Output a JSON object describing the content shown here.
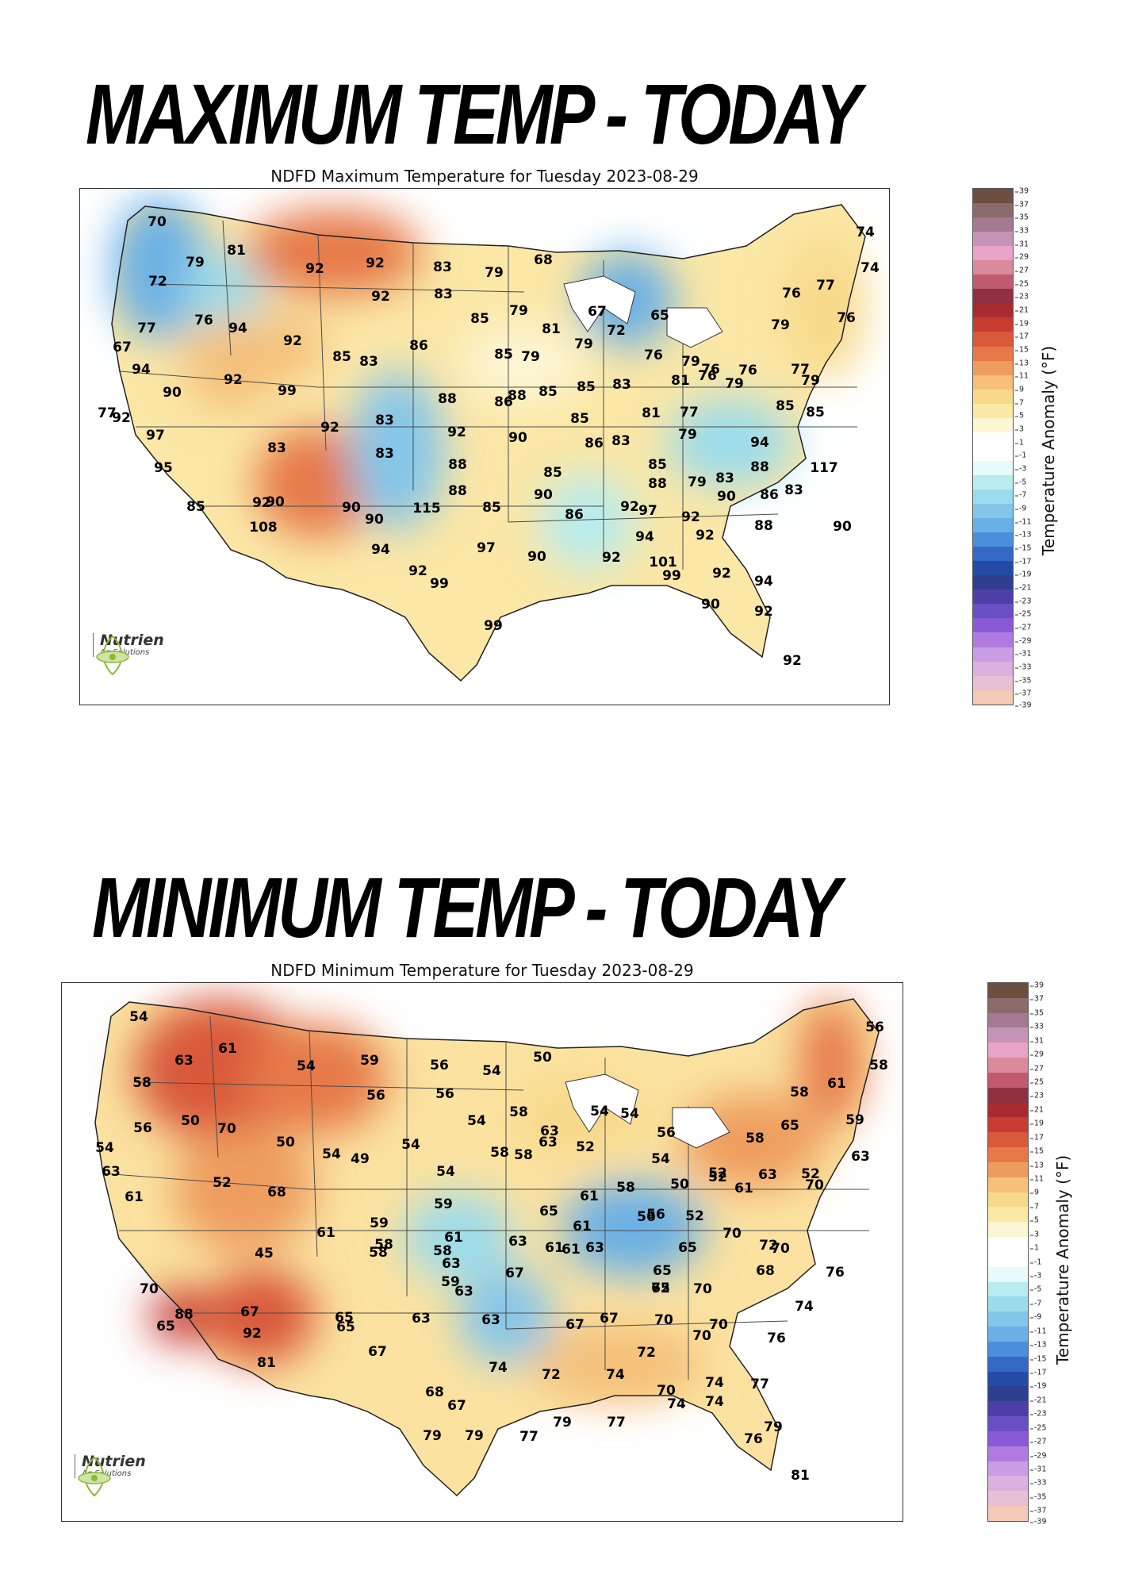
{
  "colors": {
    "warm": [
      "#fdf6d5",
      "#fbe9a6",
      "#f8d98a",
      "#f4c07a",
      "#ee9d5f",
      "#e6794a",
      "#d9593b",
      "#c83b31",
      "#a72b31",
      "#8f2f3f",
      "#c05a6e",
      "#d98a9b",
      "#e9a3c9",
      "#c794b9",
      "#a47a92",
      "#8a6a6a",
      "#6b4f3f"
    ],
    "cool": [
      "#e8fbfb",
      "#b8ecef",
      "#9bdcec",
      "#84c6ea",
      "#6ab0e6",
      "#4b8fdb",
      "#3469c4",
      "#244ba6",
      "#2f3f8f",
      "#4d3ea8",
      "#6a4ec4",
      "#8a5ad6",
      "#b07ae0",
      "#c99ee5",
      "#dcb0df",
      "#e8c0d6",
      "#f4c9b6"
    ],
    "logo_green": "#8db83b"
  },
  "maps": [
    {
      "headline": "MAXIMUM TEMP - TODAY",
      "title": "NDFD Maximum Temperature for Tuesday 2023-08-29",
      "logo": {
        "name": "Nutrien",
        "sub": "Ag Solutions"
      },
      "colorbar": {
        "label": "Temperature Anomaly (°F)",
        "ticks": [
          "39",
          "37",
          "35",
          "33",
          "31",
          "29",
          "27",
          "25",
          "23",
          "21",
          "19",
          "17",
          "15",
          "13",
          "11",
          "9",
          "7",
          "5",
          "3",
          "1",
          "-1",
          "-3",
          "-5",
          "-7",
          "-9",
          "-11",
          "-13",
          "-15",
          "-17",
          "-19",
          "-21",
          "-23",
          "-25",
          "-27",
          "-29",
          "-31",
          "-33",
          "-35",
          "-37",
          "-39"
        ]
      },
      "labels": [
        "70",
        "81",
        "79",
        "72",
        "92",
        "92",
        "83",
        "79",
        "68",
        "92",
        "83",
        "76",
        "77",
        "94",
        "92",
        "85",
        "79",
        "67",
        "65",
        "77",
        "74",
        "74",
        "76",
        "79",
        "76",
        "67",
        "85",
        "83",
        "86",
        "85",
        "79",
        "81",
        "72",
        "79",
        "76",
        "79",
        "76",
        "76",
        "94",
        "90",
        "92",
        "99",
        "88",
        "86",
        "88",
        "85",
        "85",
        "83",
        "81",
        "76",
        "79",
        "77",
        "79",
        "77",
        "92",
        "97",
        "92",
        "83",
        "92",
        "90",
        "85",
        "86",
        "83",
        "81",
        "77",
        "85",
        "85",
        "83",
        "83",
        "79",
        "94",
        "88",
        "85",
        "85",
        "79",
        "83",
        "88",
        "117",
        "95",
        "92",
        "88",
        "90",
        "88",
        "90",
        "86",
        "83",
        "85",
        "90",
        "90",
        "115",
        "85",
        "86",
        "88",
        "90",
        "108",
        "90",
        "92",
        "97",
        "94",
        "92",
        "94",
        "92",
        "97",
        "92",
        "90",
        "92",
        "101",
        "99",
        "99",
        "92",
        "90",
        "94",
        "92",
        "99",
        "92"
      ]
    },
    {
      "headline": "MINIMUM TEMP - TODAY",
      "title": "NDFD Minimum Temperature for Tuesday 2023-08-29",
      "logo": {
        "name": "Nutrien",
        "sub": "Ag Solutions"
      },
      "colorbar": {
        "label": "Temperature Anomaly (°F)",
        "ticks": [
          "39",
          "37",
          "35",
          "33",
          "31",
          "29",
          "27",
          "25",
          "23",
          "21",
          "19",
          "17",
          "15",
          "13",
          "11",
          "9",
          "7",
          "5",
          "3",
          "1",
          "-1",
          "-3",
          "-5",
          "-7",
          "-9",
          "-11",
          "-13",
          "-15",
          "-17",
          "-19",
          "-21",
          "-23",
          "-25",
          "-27",
          "-29",
          "-31",
          "-33",
          "-35",
          "-37",
          "-39"
        ]
      },
      "labels": [
        "54",
        "63",
        "61",
        "59",
        "54",
        "56",
        "54",
        "50",
        "56",
        "58",
        "56",
        "56",
        "58",
        "61",
        "58",
        "50",
        "70",
        "54",
        "54",
        "58",
        "54",
        "56",
        "63",
        "52",
        "59",
        "65",
        "56",
        "54",
        "63",
        "50",
        "54",
        "49",
        "54",
        "58",
        "58",
        "52",
        "61",
        "54",
        "58",
        "63",
        "63",
        "52",
        "68",
        "54",
        "52",
        "61",
        "63",
        "58",
        "50",
        "52",
        "61",
        "65",
        "70",
        "59",
        "56",
        "56",
        "52",
        "58",
        "59",
        "58",
        "61",
        "61",
        "61",
        "63",
        "63",
        "61",
        "65",
        "70",
        "72",
        "45",
        "58",
        "63",
        "61",
        "67",
        "70",
        "65",
        "68",
        "65",
        "72",
        "70",
        "59",
        "63",
        "70",
        "76",
        "88",
        "65",
        "67",
        "65",
        "63",
        "63",
        "67",
        "67",
        "70",
        "70",
        "74",
        "65",
        "92",
        "70",
        "76",
        "81",
        "67",
        "74",
        "72",
        "72",
        "74",
        "68",
        "67",
        "70",
        "77",
        "74",
        "74",
        "74",
        "79",
        "77",
        "77",
        "79",
        "79",
        "76",
        "79",
        "81"
      ]
    }
  ]
}
